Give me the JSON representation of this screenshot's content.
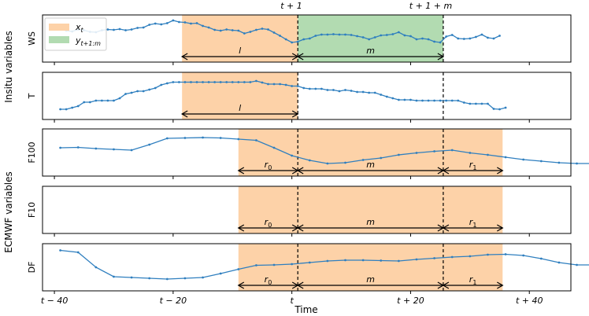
{
  "figure": {
    "top_labels": {
      "t_plus_1": "t + 1",
      "t_plus_1_plus_m": "t + 1 + m"
    },
    "group_labels": {
      "insitu": "Insitu variables",
      "ecmwf": "ECMWF variables"
    },
    "xaxis_label": "Time",
    "legend": {
      "xt": {
        "base": "x",
        "sub": "t"
      },
      "y": {
        "base": "y",
        "sub": "t+1:m"
      }
    },
    "colors": {
      "orange": "#fdd2a8",
      "green": "#b2dbb1",
      "line": "#2f7fbf",
      "axis": "#000000"
    }
  },
  "chart_data": {
    "type": "line",
    "x_ticks": [
      {
        "value": -40,
        "label": "t − 40"
      },
      {
        "value": -20,
        "label": "t − 20"
      },
      {
        "value": 0,
        "label": "t"
      },
      {
        "value": 20,
        "label": "t + 20"
      },
      {
        "value": 40,
        "label": "t + 40"
      }
    ],
    "x_range": [
      -42,
      47
    ],
    "t_plus_1_x": 1,
    "t_plus_1_plus_m_x": 25.5,
    "panels": [
      {
        "name": "WS",
        "ylim": [
          0,
          1
        ],
        "x_start": -39,
        "x_step": 1,
        "values": [
          0.74,
          0.7,
          0.68,
          0.73,
          0.71,
          0.67,
          0.66,
          0.71,
          0.73,
          0.72,
          0.74,
          0.71,
          0.73,
          0.77,
          0.78,
          0.85,
          0.88,
          0.86,
          0.89,
          0.96,
          0.92,
          0.91,
          0.88,
          0.89,
          0.82,
          0.78,
          0.72,
          0.7,
          0.73,
          0.71,
          0.7,
          0.63,
          0.67,
          0.72,
          0.75,
          0.73,
          0.65,
          0.57,
          0.48,
          0.4,
          0.42,
          0.48,
          0.5,
          0.57,
          0.6,
          0.6,
          0.61,
          0.6,
          0.6,
          0.59,
          0.56,
          0.53,
          0.48,
          0.53,
          0.58,
          0.59,
          0.61,
          0.66,
          0.58,
          0.56,
          0.48,
          0.5,
          0.48,
          0.42,
          0.4,
          0.55,
          0.59,
          0.5,
          0.49,
          0.5,
          0.54,
          0.6,
          0.52,
          0.5,
          0.57
        ],
        "regions": [
          {
            "color": "orange",
            "from": -18.5,
            "to": 1
          },
          {
            "color": "green",
            "from": 1,
            "to": 25.5
          }
        ],
        "arrows": [
          {
            "from": -18.5,
            "to": 1,
            "label": "l"
          },
          {
            "from": 1,
            "to": 25.5,
            "label": "m"
          }
        ]
      },
      {
        "name": "T",
        "ylim": [
          0,
          1
        ],
        "x_start": -39,
        "x_step": 1,
        "values": [
          0.16,
          0.16,
          0.2,
          0.24,
          0.34,
          0.34,
          0.38,
          0.38,
          0.38,
          0.38,
          0.44,
          0.55,
          0.58,
          0.62,
          0.62,
          0.66,
          0.7,
          0.78,
          0.82,
          0.85,
          0.85,
          0.85,
          0.85,
          0.85,
          0.85,
          0.85,
          0.85,
          0.85,
          0.85,
          0.85,
          0.85,
          0.85,
          0.85,
          0.88,
          0.84,
          0.8,
          0.8,
          0.8,
          0.78,
          0.75,
          0.75,
          0.7,
          0.68,
          0.68,
          0.68,
          0.65,
          0.65,
          0.62,
          0.65,
          0.63,
          0.6,
          0.6,
          0.58,
          0.58,
          0.53,
          0.48,
          0.44,
          0.4,
          0.4,
          0.4,
          0.38,
          0.38,
          0.38,
          0.38,
          0.38,
          0.38,
          0.38,
          0.38,
          0.33,
          0.3,
          0.3,
          0.3,
          0.3,
          0.17,
          0.16,
          0.2
        ],
        "regions": [
          {
            "color": "orange",
            "from": -18.5,
            "to": 1
          }
        ],
        "arrows": [
          {
            "from": -18.5,
            "to": 1,
            "label": "l"
          }
        ]
      },
      {
        "name": "F100",
        "ylim": [
          0,
          1
        ],
        "x_start": -39,
        "x_step": 3,
        "values": [
          0.62,
          0.63,
          0.6,
          0.58,
          0.56,
          0.7,
          0.86,
          0.87,
          0.88,
          0.87,
          0.84,
          0.81,
          0.62,
          0.42,
          0.3,
          0.22,
          0.24,
          0.31,
          0.36,
          0.44,
          0.49,
          0.53,
          0.56,
          0.49,
          0.44,
          0.38,
          0.32,
          0.28,
          0.24,
          0.22,
          0.22
        ],
        "regions": [
          {
            "color": "orange",
            "from": -9,
            "to": 35.5
          }
        ],
        "arrows": [
          {
            "from": -9,
            "to": 1,
            "label": "r",
            "sub": "0"
          },
          {
            "from": 1,
            "to": 25.5,
            "label": "m"
          },
          {
            "from": 25.5,
            "to": 35.5,
            "label": "r",
            "sub": "1"
          }
        ]
      },
      {
        "name": "F10",
        "ylim": [
          0,
          1
        ],
        "x_start": -39,
        "x_step": 3,
        "values": [],
        "regions": [
          {
            "color": "orange",
            "from": -9,
            "to": 35.5
          }
        ],
        "arrows": [
          {
            "from": -9,
            "to": 1,
            "label": "r",
            "sub": "0"
          },
          {
            "from": 1,
            "to": 25.5,
            "label": "m"
          },
          {
            "from": 25.5,
            "to": 35.5,
            "label": "r",
            "sub": "1"
          }
        ]
      },
      {
        "name": "DF",
        "ylim": [
          0,
          1
        ],
        "x_start": -39,
        "x_step": 3,
        "values": [
          0.93,
          0.88,
          0.5,
          0.26,
          0.24,
          0.22,
          0.2,
          0.22,
          0.24,
          0.34,
          0.45,
          0.55,
          0.56,
          0.58,
          0.62,
          0.66,
          0.68,
          0.68,
          0.67,
          0.66,
          0.7,
          0.73,
          0.76,
          0.78,
          0.82,
          0.83,
          0.8,
          0.72,
          0.62,
          0.56,
          0.56,
          0.56
        ],
        "regions": [
          {
            "color": "orange",
            "from": -9,
            "to": 35.5
          }
        ],
        "arrows": [
          {
            "from": -9,
            "to": 1,
            "label": "r",
            "sub": "0"
          },
          {
            "from": 1,
            "to": 25.5,
            "label": "m"
          },
          {
            "from": 25.5,
            "to": 35.5,
            "label": "r",
            "sub": "1"
          }
        ]
      }
    ]
  }
}
